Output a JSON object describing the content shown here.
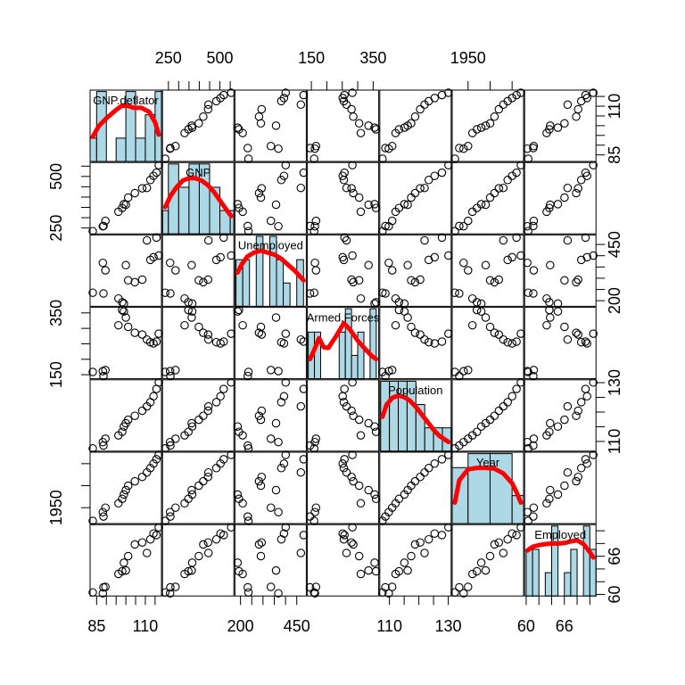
{
  "chart_data": {
    "type": "scatter",
    "title": "",
    "variables": [
      {
        "name": "GNP.deflator",
        "label": "GNP.deflator",
        "range": [
          83.0,
          116.9
        ],
        "ticks_major": [
          85,
          110
        ],
        "ticks_minor": [
          85,
          90,
          95,
          100,
          105,
          110,
          115
        ],
        "ticks_major_labels": [
          "85",
          "110"
        ],
        "label_side": "bottom-right"
      },
      {
        "name": "GNP",
        "label": "GNP",
        "range": [
          234.289,
          554.894
        ],
        "ticks_major": [
          250,
          500
        ],
        "ticks_minor": [
          250,
          300,
          350,
          400,
          450,
          500,
          550
        ],
        "ticks_major_labels": [
          "250",
          "500"
        ],
        "label_side": "top-left"
      },
      {
        "name": "Unemployed",
        "label": "Unemployed",
        "range": [
          187.0,
          480.6
        ],
        "ticks_major": [
          200,
          450
        ],
        "ticks_minor": [
          200,
          250,
          300,
          350,
          400,
          450
        ],
        "ticks_major_labels": [
          "200",
          "450"
        ],
        "label_side": "bottom-right"
      },
      {
        "name": "Armed.Forces",
        "label": "Armed.Forces",
        "range": [
          145.6,
          359.4
        ],
        "ticks_major": [
          150,
          350
        ],
        "ticks_minor": [
          150,
          200,
          250,
          300,
          350
        ],
        "ticks_major_labels": [
          "150",
          "350"
        ],
        "label_side": "top-left"
      },
      {
        "name": "Population",
        "label": "Population",
        "range": [
          107.608,
          130.081
        ],
        "ticks_major": [
          110,
          130
        ],
        "ticks_minor": [
          110,
          115,
          120,
          125,
          130
        ],
        "ticks_major_labels": [
          "110",
          "130"
        ],
        "label_side": "bottom-right"
      },
      {
        "name": "Year",
        "label": "Year",
        "range": [
          1947,
          1962
        ],
        "ticks_major": [
          1950
        ],
        "ticks_minor": [
          1950,
          1955,
          1960
        ],
        "ticks_major_labels": [
          "1950"
        ],
        "label_side": "top-left"
      },
      {
        "name": "Employed",
        "label": "Employed",
        "range": [
          60.171,
          70.551
        ],
        "ticks_major": [
          60,
          66
        ],
        "ticks_minor": [
          60,
          62,
          64,
          66,
          68,
          70
        ],
        "ticks_major_labels": [
          "60",
          "66"
        ],
        "label_side": "bottom-right"
      }
    ],
    "observations": {
      "GNP.deflator": [
        83.0,
        88.5,
        88.2,
        89.5,
        96.2,
        98.1,
        99.0,
        100.0,
        101.2,
        104.6,
        108.4,
        110.8,
        112.6,
        114.2,
        115.7,
        116.9
      ],
      "GNP": [
        234.289,
        259.426,
        258.054,
        284.599,
        328.975,
        346.999,
        365.385,
        363.112,
        397.469,
        419.18,
        442.769,
        444.546,
        482.704,
        502.601,
        518.173,
        554.894
      ],
      "Unemployed": [
        235.6,
        232.5,
        368.2,
        335.1,
        209.9,
        193.2,
        187.0,
        357.8,
        290.4,
        282.2,
        293.6,
        468.1,
        381.3,
        393.1,
        480.6,
        400.7
      ],
      "Armed.Forces": [
        159.0,
        145.6,
        161.6,
        165.0,
        309.9,
        359.4,
        354.7,
        335.0,
        304.8,
        285.7,
        279.8,
        263.7,
        255.2,
        251.4,
        257.2,
        282.7
      ],
      "Population": [
        107.608,
        108.632,
        109.773,
        110.929,
        112.075,
        113.27,
        115.094,
        116.219,
        117.388,
        118.734,
        120.445,
        121.95,
        123.366,
        125.368,
        127.852,
        130.081
      ],
      "Year": [
        1947,
        1948,
        1949,
        1950,
        1951,
        1952,
        1953,
        1954,
        1955,
        1956,
        1957,
        1958,
        1959,
        1960,
        1961,
        1962
      ],
      "Employed": [
        60.323,
        61.122,
        60.171,
        61.187,
        63.221,
        63.639,
        64.989,
        63.761,
        66.019,
        67.857,
        68.169,
        66.513,
        68.655,
        69.564,
        69.331,
        70.551
      ]
    },
    "diagonal": [
      {
        "variable": "GNP.deflator",
        "hist_breaks": [
          80,
          85,
          90,
          95,
          100,
          105,
          110,
          115,
          120
        ],
        "hist_counts": [
          1,
          3,
          0,
          1,
          3,
          1,
          2,
          3,
          0
        ],
        "density": [
          [
            83.0,
            0.012
          ],
          [
            86,
            0.017
          ],
          [
            90,
            0.021
          ],
          [
            95,
            0.025
          ],
          [
            98,
            0.027
          ],
          [
            101,
            0.027
          ],
          [
            104,
            0.026
          ],
          [
            108,
            0.026
          ],
          [
            112,
            0.024
          ],
          [
            115,
            0.019
          ],
          [
            116.9,
            0.013
          ]
        ]
      },
      {
        "variable": "GNP",
        "hist_breaks": [
          200,
          250,
          300,
          350,
          400,
          450,
          500,
          550,
          600
        ],
        "hist_counts": [
          1,
          3,
          2,
          3,
          3,
          2,
          1,
          1,
          0
        ],
        "density": [
          [
            234.289,
            0.0012
          ],
          [
            260,
            0.0017
          ],
          [
            290,
            0.0021
          ],
          [
            320,
            0.0024
          ],
          [
            350,
            0.0025
          ],
          [
            380,
            0.0025
          ],
          [
            410,
            0.0024
          ],
          [
            440,
            0.0022
          ],
          [
            470,
            0.0019
          ],
          [
            500,
            0.0015
          ],
          [
            530,
            0.0011
          ],
          [
            554.894,
            0.0008
          ]
        ]
      },
      {
        "variable": "Unemployed",
        "hist_breaks": [
          180,
          210,
          240,
          270,
          300,
          330,
          360,
          390,
          420,
          450,
          480
        ],
        "hist_counts": [
          2,
          2,
          0,
          3,
          0,
          3,
          2,
          1,
          0,
          2
        ],
        "density": [
          [
            187.0,
            0.0017
          ],
          [
            205,
            0.0021
          ],
          [
            230,
            0.0025
          ],
          [
            260,
            0.0027
          ],
          [
            290,
            0.0028
          ],
          [
            320,
            0.0027
          ],
          [
            350,
            0.0026
          ],
          [
            380,
            0.0024
          ],
          [
            410,
            0.0021
          ],
          [
            440,
            0.0018
          ],
          [
            465,
            0.0015
          ],
          [
            480.6,
            0.0013
          ]
        ]
      },
      {
        "variable": "Armed.Forces",
        "hist_breaks": [
          140,
          160,
          180,
          200,
          220,
          240,
          260,
          280,
          300,
          320,
          340,
          360
        ],
        "hist_counts": [
          2,
          2,
          0,
          0,
          0,
          2,
          3,
          1,
          2,
          0,
          3
        ],
        "density": [
          [
            145.6,
            0.003
          ],
          [
            160,
            0.0045
          ],
          [
            175,
            0.0062
          ],
          [
            190,
            0.0048
          ],
          [
            205,
            0.0047
          ],
          [
            230,
            0.0065
          ],
          [
            255,
            0.0085
          ],
          [
            275,
            0.0075
          ],
          [
            300,
            0.0058
          ],
          [
            325,
            0.0045
          ],
          [
            345,
            0.0035
          ],
          [
            359.4,
            0.003
          ]
        ]
      },
      {
        "variable": "Population",
        "hist_breaks": [
          107,
          110,
          113,
          116,
          119,
          122,
          125,
          128,
          131
        ],
        "hist_counts": [
          3,
          3,
          3,
          3,
          2,
          1,
          1,
          1
        ],
        "density": [
          [
            107.608,
            0.045
          ],
          [
            109,
            0.061
          ],
          [
            111,
            0.07
          ],
          [
            113,
            0.073
          ],
          [
            115,
            0.071
          ],
          [
            117,
            0.066
          ],
          [
            119,
            0.058
          ],
          [
            121,
            0.048
          ],
          [
            123,
            0.038
          ],
          [
            125,
            0.028
          ],
          [
            127,
            0.02
          ],
          [
            130.081,
            0.012
          ]
        ]
      },
      {
        "variable": "Year",
        "hist_breaks": [
          1945,
          1950,
          1955,
          1960,
          1965
        ],
        "hist_counts": [
          4,
          5,
          5,
          2
        ],
        "density": [
          [
            1947,
            0.03
          ],
          [
            1948,
            0.062
          ],
          [
            1950,
            0.078
          ],
          [
            1952,
            0.08
          ],
          [
            1954,
            0.08
          ],
          [
            1956,
            0.079
          ],
          [
            1958,
            0.072
          ],
          [
            1960,
            0.058
          ],
          [
            1961,
            0.045
          ],
          [
            1962,
            0.03
          ]
        ]
      },
      {
        "variable": "Employed",
        "hist_breaks": [
          60,
          61,
          62,
          63,
          64,
          65,
          66,
          67,
          68,
          69,
          70,
          71
        ],
        "hist_counts": [
          2,
          2,
          0,
          1,
          3,
          0,
          1,
          2,
          0,
          3,
          2
        ],
        "density": [
          [
            60.171,
            0.085
          ],
          [
            61,
            0.092
          ],
          [
            62,
            0.095
          ],
          [
            63,
            0.097
          ],
          [
            64,
            0.098
          ],
          [
            65,
            0.098
          ],
          [
            66,
            0.099
          ],
          [
            67,
            0.102
          ],
          [
            68,
            0.104
          ],
          [
            69,
            0.097
          ],
          [
            70,
            0.082
          ],
          [
            70.551,
            0.072
          ]
        ]
      }
    ],
    "colors": {
      "histogram_fill": "#add8e6",
      "density_line": "#ff0000",
      "points": "#000000",
      "frame": "#000000"
    },
    "grid": false,
    "legend": "none"
  }
}
